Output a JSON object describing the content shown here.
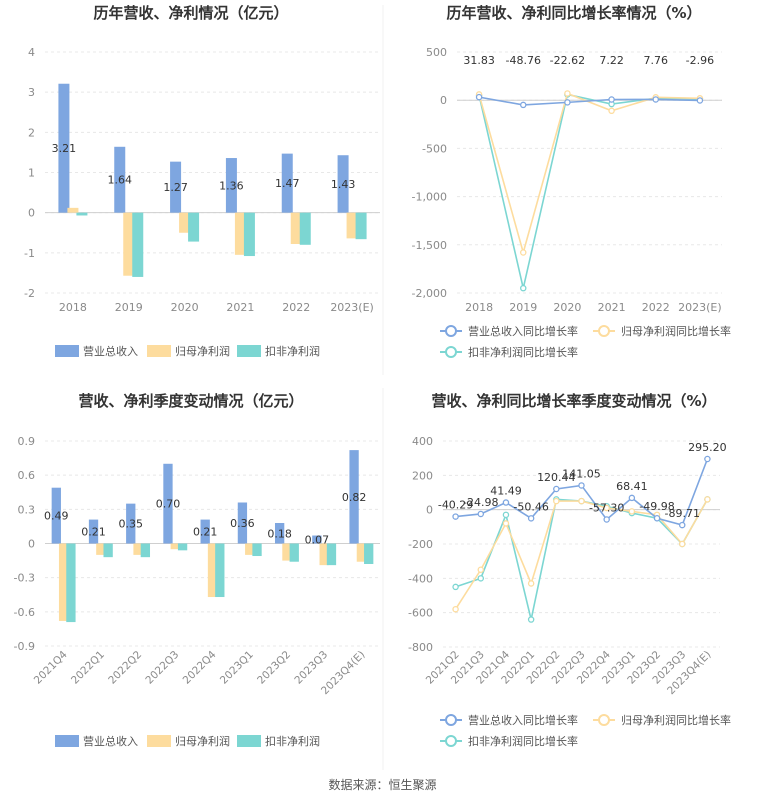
{
  "source": "数据来源：恒生聚源",
  "colors": {
    "rev": "#7ea6e0",
    "net": "#fddc9e",
    "ded": "#7cd6d2",
    "axis": "#8a8a8a",
    "grid": "#e8e8e8",
    "title": "#333333"
  },
  "chart_data": [
    {
      "type": "bar",
      "title": "历年营收、净利情况（亿元）",
      "categories": [
        "2018",
        "2019",
        "2020",
        "2021",
        "2022",
        "2023(E)"
      ],
      "ylim": [
        -2,
        4
      ],
      "yticks": [
        "4",
        "3",
        "2",
        "1",
        "0",
        "-1",
        "-2"
      ],
      "series": [
        {
          "name": "营业总收入",
          "values": [
            3.21,
            1.64,
            1.27,
            1.36,
            1.47,
            1.43
          ],
          "labels": [
            "3.21",
            "1.64",
            "1.27",
            "1.36",
            "1.47",
            "1.43"
          ]
        },
        {
          "name": "归母净利润",
          "values": [
            0.12,
            -1.57,
            -0.5,
            -1.05,
            -0.78,
            -0.64
          ]
        },
        {
          "name": "扣非净利润",
          "values": [
            -0.07,
            -1.6,
            -0.72,
            -1.08,
            -0.8,
            -0.66
          ]
        }
      ],
      "legend": "bottom"
    },
    {
      "type": "line",
      "title": "历年营收、净利同比增长率情况（%）",
      "categories": [
        "2018",
        "2019",
        "2020",
        "2021",
        "2022",
        "2023(E)"
      ],
      "ylim": [
        -2000,
        500
      ],
      "yticks": [
        "500",
        "0",
        "-500",
        "-1,000",
        "-1,500",
        "-2,000"
      ],
      "series": [
        {
          "name": "营业总收入同比增长率",
          "values": [
            31.83,
            -48.76,
            -22.62,
            7.22,
            7.76,
            -2.96
          ],
          "labels": [
            "31.83",
            "-48.76",
            "-22.62",
            "7.22",
            "7.76",
            "-2.96"
          ]
        },
        {
          "name": "归母净利润同比增长率",
          "values": [
            60,
            -1580,
            70,
            -110,
            30,
            20
          ]
        },
        {
          "name": "扣非净利润同比增长率",
          "values": [
            50,
            -1950,
            60,
            -40,
            20,
            15
          ]
        }
      ],
      "legend": "bottom"
    },
    {
      "type": "bar",
      "title": "营收、净利季度变动情况（亿元）",
      "categories": [
        "2021Q4",
        "2022Q1",
        "2022Q2",
        "2022Q3",
        "2022Q4",
        "2023Q1",
        "2023Q2",
        "2023Q3",
        "2023Q4(E)"
      ],
      "ylim": [
        -0.9,
        0.9
      ],
      "yticks": [
        "0.9",
        "0.6",
        "0.3",
        "0",
        "-0.3",
        "-0.6",
        "-0.9"
      ],
      "series": [
        {
          "name": "营业总收入",
          "values": [
            0.49,
            0.21,
            0.35,
            0.7,
            0.21,
            0.36,
            0.18,
            0.07,
            0.82
          ],
          "labels": [
            "0.49",
            "0.21",
            "0.35",
            "0.70",
            "0.21",
            "0.36",
            "0.18",
            "0.07",
            "0.82"
          ]
        },
        {
          "name": "归母净利润",
          "values": [
            -0.68,
            -0.1,
            -0.1,
            -0.05,
            -0.47,
            -0.1,
            -0.15,
            -0.19,
            -0.16
          ]
        },
        {
          "name": "扣非净利润",
          "values": [
            -0.69,
            -0.12,
            -0.12,
            -0.06,
            -0.47,
            -0.11,
            -0.16,
            -0.19,
            -0.18
          ]
        }
      ],
      "legend": "bottom"
    },
    {
      "type": "line",
      "title": "营收、净利同比增长率季度变动情况（%）",
      "categories": [
        "2021Q2",
        "2021Q3",
        "2021Q4",
        "2022Q1",
        "2022Q2",
        "2022Q3",
        "2022Q4",
        "2023Q1",
        "2023Q2",
        "2023Q3",
        "2023Q4(E)"
      ],
      "ylim": [
        -800,
        400
      ],
      "yticks": [
        "400",
        "200",
        "0",
        "-200",
        "-400",
        "-600",
        "-800"
      ],
      "series": [
        {
          "name": "营业总收入同比增长率",
          "values": [
            -40.29,
            -24.98,
            41.49,
            -50.46,
            120.44,
            141.05,
            -57.3,
            68.41,
            -49.98,
            -89.71,
            295.2
          ],
          "labels": [
            "-40.29",
            "-24.98",
            "41.49",
            "-50.46",
            "120.44",
            "141.05",
            "-57.30",
            "68.41",
            "-49.98",
            "-89.71",
            "295.20"
          ]
        },
        {
          "name": "归母净利润同比增长率",
          "values": [
            -580,
            -350,
            -80,
            -430,
            50,
            50,
            10,
            -10,
            -30,
            -200,
            60
          ]
        },
        {
          "name": "扣非净利润同比增长率",
          "values": [
            -450,
            -400,
            -30,
            -640,
            60,
            50,
            20,
            -20,
            -50,
            -200,
            60
          ]
        }
      ],
      "legend": "bottom"
    }
  ]
}
